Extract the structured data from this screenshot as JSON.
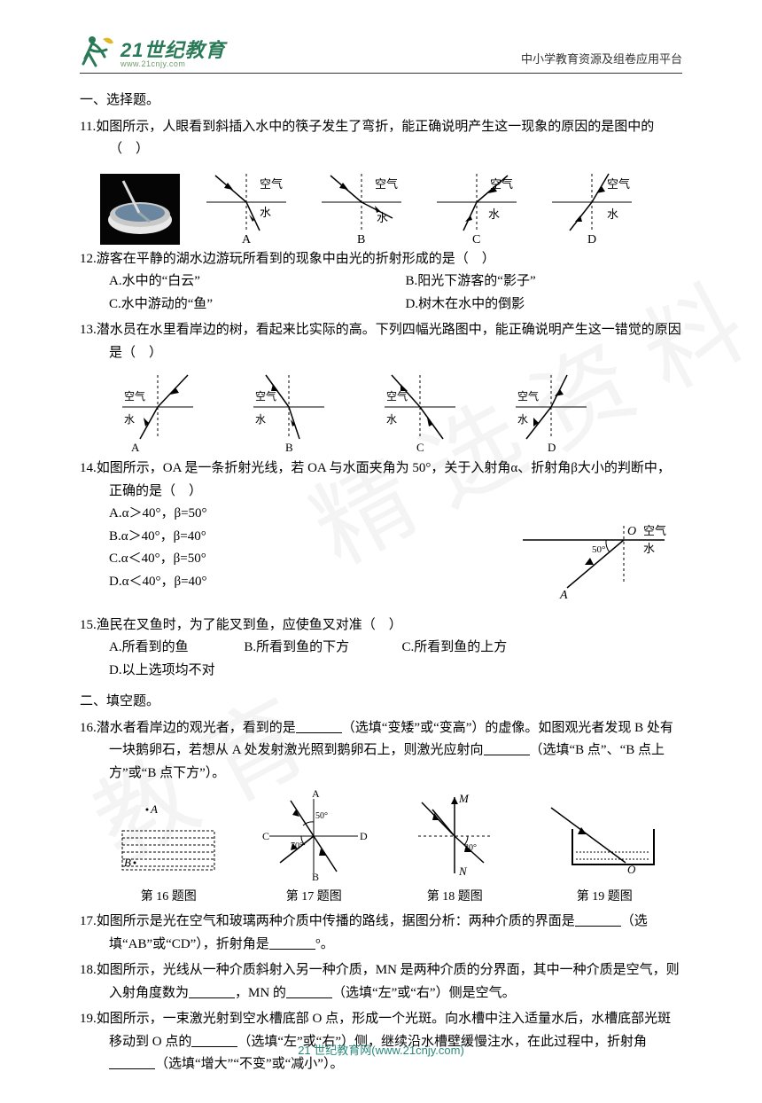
{
  "header": {
    "logo_cn": "21世纪教育",
    "logo_url": "www.21cnjy.com",
    "tagline": "中小学教育资源及组卷应用平台"
  },
  "watermark": {
    "t1": "精选资料",
    "t2": "教育"
  },
  "footer": {
    "brand": "21 世纪教育网",
    "url": "(www.21cnjy.com)"
  },
  "sections": {
    "s1": "一、选择题。",
    "s2": "二、填空题。"
  },
  "q11": {
    "stem": "11.如图所示，人眼看到斜插入水中的筷子发生了弯折，能正确说明产生这一现象的原因的是图中的（　）",
    "labels": {
      "top": "空气",
      "bottom": "水",
      "A": "A",
      "B": "B",
      "C": "C",
      "D": "D"
    }
  },
  "q12": {
    "stem": "12.游客在平静的湖水边游玩所看到的现象中由光的折射形成的是（　）",
    "A": "A.水中的“白云”",
    "B": "B.阳光下游客的“影子”",
    "C": "C.水中游动的“鱼”",
    "D": "D.树木在水中的倒影"
  },
  "q13": {
    "stem": "13.潜水员在水里看岸边的树，看起来比实际的高。下列四幅光路图中，能正确说明产生这一错觉的原因是（　）",
    "labels": {
      "top": "空气",
      "bottom": "水",
      "A": "A",
      "B": "B",
      "C": "C",
      "D": "D"
    }
  },
  "q14": {
    "stem": "14.如图所示，OA 是一条折射光线，若 OA 与水面夹角为 50°，关于入射角α、折射角β大小的判断中，正确的是（　）",
    "A": "A.α＞40°，β=50°",
    "B": "B.α＞40°，β=40°",
    "C": "C.α＜40°，β=50°",
    "D": "D.α＜40°，β=40°",
    "fig": {
      "angle": "50°",
      "top": "空气",
      "bottom": "水",
      "O": "O",
      "A": "A"
    }
  },
  "q15": {
    "stem": "15.渔民在叉鱼时，为了能叉到鱼，应使鱼叉对准（　）",
    "A": "A.所看到的鱼",
    "B": "B.所看到鱼的下方",
    "C": "C.所看到鱼的上方",
    "D": "D.以上选项均不对"
  },
  "q16": {
    "stem": "16.潜水者看岸边的观光者，看到的是________（选填“变矮”或“变高”）的虚像。如图观光者发现 B 处有一块鹅卵石，若想从 A 处发射激光照到鹅卵石上，则激光应射向________（选填“B 点”、“B 点上方”或“B 点下方”）。"
  },
  "q17": {
    "stem": "17.如图所示是光在空气和玻璃两种介质中传播的路线，据图分析：两种介质的界面是______（选填“AB”或“CD”），折射角是______°。"
  },
  "q18": {
    "stem": "18.如图所示，光线从一种介质斜射入另一种介质，MN 是两种介质的分界面，其中一种介质是空气，则入射角度数为________，MN 的______（选填“左”或“右”）侧是空气。"
  },
  "q19": {
    "stem": "19.如图所示，一束激光射到空水槽底部 O 点，形成一个光斑。向水槽中注入适量水后，水槽底部光斑移动到 O 点的______（选填“左”或“右”）侧，继续沿水槽壁缓慢注水，在此过程中，折射角______（选填“增大”“不变”或“减小”）。"
  },
  "figcaps": {
    "f16": "第 16 题图",
    "f17": "第 17 题图",
    "f18": "第 18 题图",
    "f19": "第 19 题图"
  },
  "fig17": {
    "A": "A",
    "B": "B",
    "C": "C",
    "D": "D",
    "a1": "50°",
    "a2": "70°"
  },
  "fig18": {
    "M": "M",
    "N": "N",
    "a": "30°"
  },
  "fig19": {
    "O": "O"
  },
  "fig16": {
    "A": "A",
    "B": "B"
  }
}
